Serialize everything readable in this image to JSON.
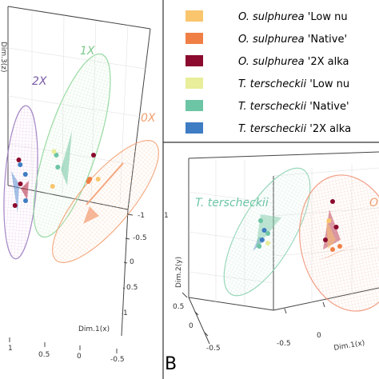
{
  "panel_label": "B",
  "legend": {
    "entries": [
      {
        "species": "O. sulphurea",
        "treatment": "'Low nu",
        "color": "#F9C56D"
      },
      {
        "species": "O. sulphurea",
        "treatment": "'Native'",
        "color": "#F07F45"
      },
      {
        "species": "O. sulphurea",
        "treatment": "'2X alka",
        "color": "#8B0A2E"
      },
      {
        "species": "T. terscheckii",
        "treatment": "'Low nu",
        "color": "#E8EE9A"
      },
      {
        "species": "T. terscheckii",
        "treatment": "'Native'",
        "color": "#6CC5A4"
      },
      {
        "species": "T. terscheckii",
        "treatment": "'2X alka",
        "color": "#3E7CC3"
      }
    ]
  },
  "chart_data": [
    {
      "type": "scatter",
      "panel": "A",
      "title": "",
      "xlabel": "Dim.1(x)",
      "ylabel": "",
      "zlabel": "Dim.3(z)",
      "x_ticks": [
        "1",
        "0.5",
        "0",
        "-0.5"
      ],
      "y_ticks": [
        "-1",
        "-0.5",
        "0",
        "0.5",
        "1"
      ],
      "annotations": [
        "2X",
        "1X",
        "0X"
      ],
      "series": [
        {
          "name": "2X",
          "color": "#7B5EA7",
          "points": [
            [
              0.9,
              0.1,
              0.4
            ],
            [
              0.85,
              -0.1,
              0.2
            ],
            [
              0.8,
              0.2,
              -0.1
            ],
            [
              0.95,
              0.0,
              -0.3
            ],
            [
              0.75,
              -0.2,
              0.0
            ],
            [
              0.88,
              0.15,
              0.1
            ]
          ]
        },
        {
          "name": "1X",
          "color": "#7DC98A",
          "points": [
            [
              0.3,
              0.3,
              0.6
            ],
            [
              0.25,
              0.1,
              0.3
            ],
            [
              0.35,
              0.2,
              0.1
            ],
            [
              0.3,
              0.0,
              0.45
            ]
          ]
        },
        {
          "name": "0X",
          "color": "#F0A070",
          "points": [
            [
              -0.4,
              -0.3,
              0.2
            ],
            [
              -0.3,
              -0.2,
              -0.1
            ],
            [
              -0.35,
              -0.4,
              -0.2
            ],
            [
              -0.45,
              -0.1,
              0.0
            ]
          ]
        }
      ]
    },
    {
      "type": "scatter",
      "panel": "B",
      "title": "",
      "xlabel": "Dim.1(x)",
      "ylabel": "Dim.2(y)",
      "x_ticks": [
        "-0.5",
        "0"
      ],
      "y_ticks": [
        "1",
        "0.5",
        "0",
        "-0.5"
      ],
      "annotations": [
        "T. terscheckii",
        "O"
      ],
      "series": [
        {
          "name": "T. terscheckii",
          "color": "#6CC5A4",
          "points": [
            [
              -0.6,
              0.3
            ],
            [
              -0.55,
              0.15
            ],
            [
              -0.5,
              0.1
            ],
            [
              -0.58,
              0.0
            ],
            [
              -0.62,
              -0.1
            ],
            [
              -0.5,
              -0.05
            ]
          ]
        },
        {
          "name": "O. sulphurea",
          "color": "#F07F45",
          "points": [
            [
              0.4,
              0.6
            ],
            [
              0.35,
              0.3
            ],
            [
              0.45,
              0.2
            ],
            [
              0.3,
              0.0
            ],
            [
              0.5,
              -0.1
            ],
            [
              0.4,
              -0.15
            ]
          ]
        }
      ]
    }
  ]
}
